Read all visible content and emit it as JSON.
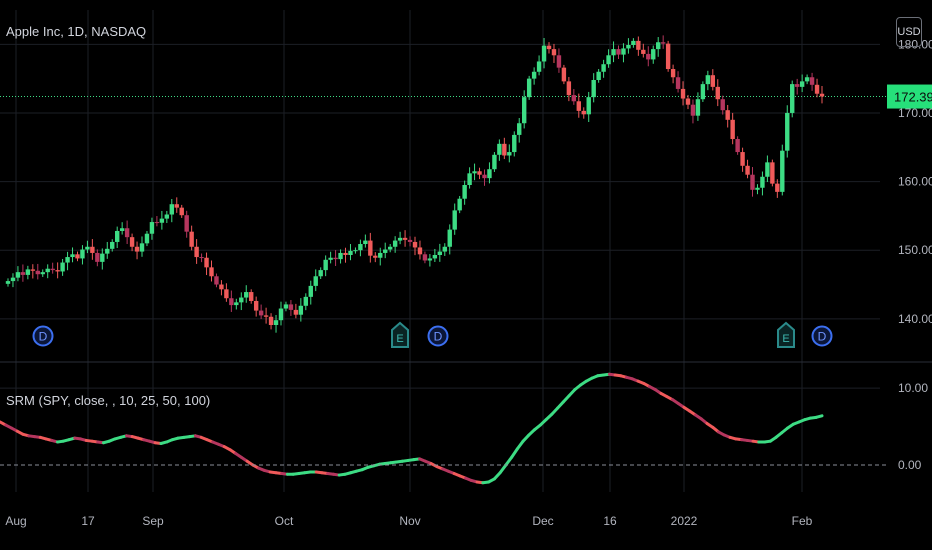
{
  "header": {
    "symbol_title": "Apple Inc, 1D, NASDAQ",
    "currency": "USD"
  },
  "indicator": {
    "label": "SRM (SPY, close, , 10, 25, 50, 100)"
  },
  "colors": {
    "up": "#3ddc84",
    "down": "#f05a5a",
    "down_dark": "#b5365e",
    "grid": "#1c1f26",
    "last_price_bg": "#26e07a",
    "marker": "#3c6ff0",
    "earnings": "#2a8a8a"
  },
  "chart_data": [
    {
      "type": "candlestick",
      "title": "Apple Inc, 1D, NASDAQ",
      "y_ticks": [
        "140.00",
        "150.00",
        "160.00",
        "170.00",
        "180.00"
      ],
      "ylim": [
        134,
        185
      ],
      "last_price": "172.39",
      "x_ticks": [
        "Aug",
        "17",
        "Sep",
        "Oct",
        "Nov",
        "Dec",
        "16",
        "2022",
        "Feb"
      ],
      "series_close": [
        145.5,
        146.0,
        146.8,
        146.4,
        147.2,
        147.0,
        146.5,
        146.8,
        147.3,
        147.1,
        146.9,
        148.2,
        149.0,
        149.4,
        148.8,
        150.1,
        150.5,
        149.6,
        148.3,
        149.5,
        150.2,
        151.2,
        152.8,
        153.2,
        151.9,
        150.5,
        149.8,
        151.0,
        152.4,
        154.1,
        154.0,
        154.6,
        155.2,
        156.7,
        156.2,
        155.1,
        152.7,
        150.5,
        149.0,
        148.9,
        147.5,
        146.2,
        145.0,
        144.3,
        143.0,
        142.0,
        142.4,
        143.1,
        143.9,
        142.6,
        141.2,
        140.5,
        140.3,
        139.1,
        139.8,
        141.5,
        142.1,
        141.3,
        140.6,
        141.9,
        143.2,
        144.8,
        146.2,
        147.1,
        148.6,
        148.9,
        148.7,
        149.6,
        149.3,
        149.9,
        150.0,
        150.9,
        151.4,
        149.2,
        148.9,
        149.6,
        150.1,
        150.5,
        151.4,
        151.8,
        151.5,
        151.2,
        150.4,
        149.4,
        148.5,
        148.8,
        149.3,
        149.8,
        150.5,
        153.0,
        155.8,
        157.5,
        159.5,
        161.2,
        161.5,
        161.0,
        160.5,
        161.8,
        163.9,
        165.5,
        163.8,
        164.3,
        166.8,
        168.5,
        172.3,
        175.0,
        176.0,
        177.5,
        179.8,
        179.3,
        178.4,
        176.6,
        174.6,
        172.6,
        171.7,
        170.3,
        169.8,
        172.3,
        174.8,
        176.0,
        177.1,
        178.4,
        179.3,
        178.5,
        179.4,
        179.9,
        180.5,
        179.2,
        178.6,
        177.8,
        179.3,
        180.3,
        180.1,
        176.4,
        175.2,
        173.5,
        172.1,
        171.2,
        169.6,
        172.0,
        174.2,
        175.5,
        173.8,
        172.0,
        170.4,
        169.0,
        166.2,
        164.3,
        162.3,
        161.0,
        158.8,
        159.1,
        160.7,
        162.8,
        159.7,
        158.5,
        164.5,
        170.0,
        174.2,
        173.8,
        174.6,
        175.2,
        174.1,
        172.8,
        172.4
      ]
    },
    {
      "type": "line",
      "title": "SRM (SPY, close, , 10, 25, 50, 100)",
      "y_ticks": [
        "0.00",
        "10.00"
      ],
      "ylim": [
        -3.5,
        13.0
      ],
      "series_values": [
        5.6,
        5.2,
        4.8,
        4.4,
        4.0,
        3.8,
        3.7,
        3.6,
        3.4,
        3.2,
        3.0,
        3.1,
        3.3,
        3.5,
        3.4,
        3.2,
        3.1,
        3.0,
        2.9,
        3.1,
        3.4,
        3.6,
        3.8,
        3.7,
        3.5,
        3.3,
        3.1,
        2.9,
        2.8,
        3.0,
        3.3,
        3.5,
        3.6,
        3.7,
        3.8,
        3.6,
        3.3,
        3.0,
        2.7,
        2.4,
        2.0,
        1.5,
        1.0,
        0.5,
        0.0,
        -0.4,
        -0.7,
        -0.9,
        -1.0,
        -1.1,
        -1.2,
        -1.2,
        -1.1,
        -1.0,
        -0.9,
        -0.9,
        -1.0,
        -1.1,
        -1.2,
        -1.3,
        -1.2,
        -1.0,
        -0.8,
        -0.6,
        -0.3,
        -0.1,
        0.1,
        0.2,
        0.3,
        0.4,
        0.5,
        0.6,
        0.7,
        0.8,
        0.5,
        0.2,
        -0.2,
        -0.5,
        -0.8,
        -1.1,
        -1.4,
        -1.7,
        -2.0,
        -2.2,
        -2.3,
        -2.2,
        -1.8,
        -1.0,
        0.0,
        1.0,
        2.1,
        3.1,
        3.9,
        4.6,
        5.2,
        5.9,
        6.6,
        7.4,
        8.2,
        9.0,
        9.8,
        10.4,
        10.9,
        11.3,
        11.6,
        11.7,
        11.8,
        11.7,
        11.6,
        11.4,
        11.2,
        10.9,
        10.6,
        10.2,
        9.8,
        9.3,
        8.9,
        8.5,
        8.0,
        7.5,
        7.0,
        6.5,
        6.0,
        5.4,
        4.9,
        4.3,
        3.9,
        3.6,
        3.4,
        3.3,
        3.2,
        3.1,
        3.0,
        3.0,
        3.1,
        3.6,
        4.2,
        4.8,
        5.3,
        5.6,
        5.9,
        6.1,
        6.2,
        6.4
      ]
    }
  ]
}
